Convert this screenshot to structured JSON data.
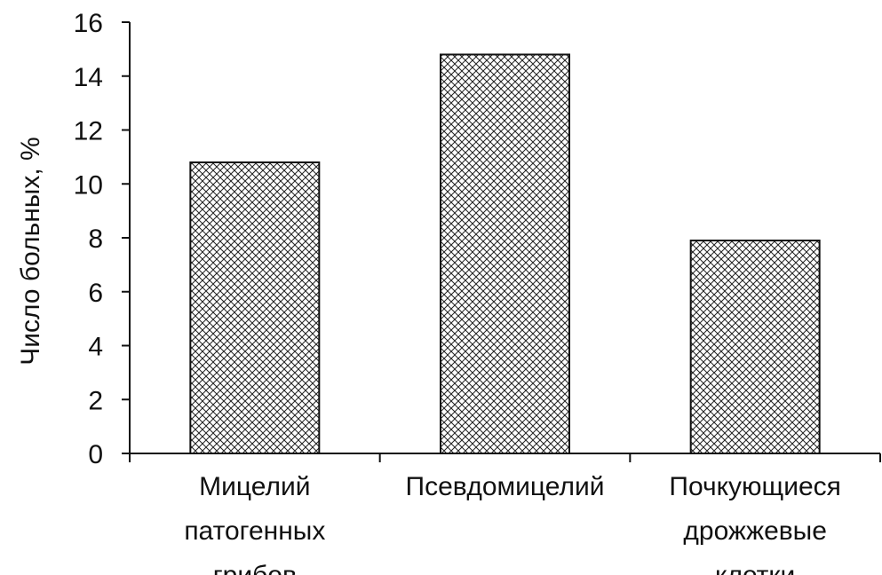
{
  "chart_data": {
    "type": "bar",
    "title": "",
    "xlabel": "",
    "ylabel": "Число больных, %",
    "ylim": [
      0,
      16
    ],
    "yticks": [
      0,
      2,
      4,
      6,
      8,
      10,
      12,
      14,
      16
    ],
    "grid": false,
    "categories": [
      [
        "Мицелий",
        "патогенных",
        "грибов"
      ],
      [
        "Псевдомицелий"
      ],
      [
        "Почкующиеся",
        "дрожжевые",
        "клетки"
      ]
    ],
    "values": [
      10.8,
      14.8,
      7.9
    ],
    "bar_fill": "crosshatch",
    "colors": {
      "axis": "#111111",
      "bar_stroke": "#111111",
      "hatch": "#222222",
      "background": "#ffffff"
    }
  }
}
